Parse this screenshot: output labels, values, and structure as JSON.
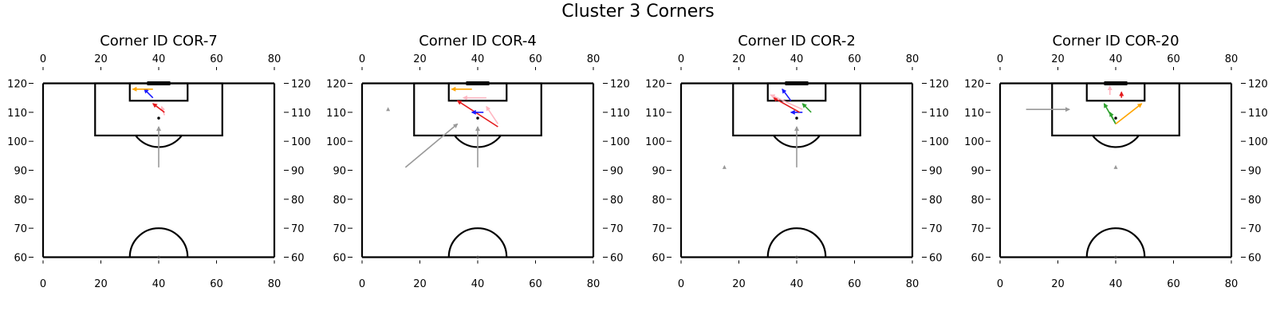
{
  "figure": {
    "title": "Cluster 3 Corners"
  },
  "colors": {
    "pitch_lines": "#000000",
    "background": "#ffffff"
  },
  "chart_data": [
    {
      "type": "pitch-arrows",
      "title": "Corner ID COR-7",
      "xlim": [
        0,
        80
      ],
      "ylim": [
        60,
        120
      ],
      "xticks": [
        0,
        20,
        40,
        60,
        80
      ],
      "yticks": [
        60,
        70,
        80,
        90,
        100,
        110,
        120
      ],
      "arrows": [
        {
          "color": "#999999",
          "x0": 40,
          "y0": 91,
          "x1": 40,
          "y1": 105
        },
        {
          "color": "#ffb6c1",
          "x0": 42,
          "y0": 109,
          "x1": 41,
          "y1": 112
        },
        {
          "color": "#e41a1c",
          "x0": 42,
          "y0": 110,
          "x1": 38,
          "y1": 113
        },
        {
          "color": "#1a1aff",
          "x0": 38,
          "y0": 115,
          "x1": 35,
          "y1": 118
        },
        {
          "color": "#ffa500",
          "x0": 38,
          "y0": 118,
          "x1": 31,
          "y1": 118
        }
      ],
      "points": [
        {
          "color": "#000000",
          "x": 40,
          "y": 108
        },
        {
          "color": "#444444",
          "x": 40,
          "y": 60
        }
      ]
    },
    {
      "type": "pitch-arrows",
      "title": "Corner ID COR-4",
      "xlim": [
        0,
        80
      ],
      "ylim": [
        60,
        120
      ],
      "xticks": [
        0,
        20,
        40,
        60,
        80
      ],
      "yticks": [
        60,
        70,
        80,
        90,
        100,
        110,
        120
      ],
      "arrows": [
        {
          "color": "#999999",
          "x0": 15,
          "y0": 91,
          "x1": 33,
          "y1": 106
        },
        {
          "color": "#999999",
          "x0": 40,
          "y0": 91,
          "x1": 40,
          "y1": 105
        },
        {
          "color": "#ffb6c1",
          "x0": 47,
          "y0": 106,
          "x1": 43,
          "y1": 112
        },
        {
          "color": "#e41a1c",
          "x0": 47,
          "y0": 105,
          "x1": 33,
          "y1": 114
        },
        {
          "color": "#1a1aff",
          "x0": 42,
          "y0": 110,
          "x1": 38,
          "y1": 110
        },
        {
          "color": "#ffb6c1",
          "x0": 43,
          "y0": 115,
          "x1": 35,
          "y1": 115
        },
        {
          "color": "#ffa500",
          "x0": 38,
          "y0": 118,
          "x1": 31,
          "y1": 118
        }
      ],
      "points": [
        {
          "color": "#999999",
          "x": 9,
          "y": 111
        },
        {
          "color": "#000000",
          "x": 40,
          "y": 108
        },
        {
          "color": "#444444",
          "x": 40,
          "y": 60
        }
      ]
    },
    {
      "type": "pitch-arrows",
      "title": "Corner ID COR-2",
      "xlim": [
        0,
        80
      ],
      "ylim": [
        60,
        120
      ],
      "xticks": [
        0,
        20,
        40,
        60,
        80
      ],
      "yticks": [
        60,
        70,
        80,
        90,
        100,
        110,
        120
      ],
      "arrows": [
        {
          "color": "#999999",
          "x0": 40,
          "y0": 91,
          "x1": 40,
          "y1": 105
        },
        {
          "color": "#1a1aff",
          "x0": 42,
          "y0": 110,
          "x1": 38,
          "y1": 110
        },
        {
          "color": "#e41a1c",
          "x0": 41,
          "y0": 110,
          "x1": 32,
          "y1": 115
        },
        {
          "color": "#ffb6c1",
          "x0": 42,
          "y0": 111,
          "x1": 31,
          "y1": 116
        },
        {
          "color": "#2ca02c",
          "x0": 45,
          "y0": 110,
          "x1": 42,
          "y1": 113
        },
        {
          "color": "#1a1aff",
          "x0": 38,
          "y0": 114,
          "x1": 35,
          "y1": 118
        }
      ],
      "points": [
        {
          "color": "#999999",
          "x": 15,
          "y": 91
        },
        {
          "color": "#000000",
          "x": 40,
          "y": 108
        },
        {
          "color": "#444444",
          "x": 40,
          "y": 60
        }
      ]
    },
    {
      "type": "pitch-arrows",
      "title": "Corner ID COR-20",
      "xlim": [
        0,
        80
      ],
      "ylim": [
        60,
        120
      ],
      "xticks": [
        0,
        20,
        40,
        60,
        80
      ],
      "yticks": [
        60,
        70,
        80,
        90,
        100,
        110,
        120
      ],
      "arrows": [
        {
          "color": "#999999",
          "x0": 9,
          "y0": 111,
          "x1": 24,
          "y1": 111
        },
        {
          "color": "#2ca02c",
          "x0": 40,
          "y0": 106,
          "x1": 36,
          "y1": 113
        },
        {
          "color": "#2ca02c",
          "x0": 40,
          "y0": 106,
          "x1": 38,
          "y1": 110
        },
        {
          "color": "#ffa500",
          "x0": 40,
          "y0": 106,
          "x1": 49,
          "y1": 113
        },
        {
          "color": "#e41a1c",
          "x0": 42,
          "y0": 115,
          "x1": 42,
          "y1": 117
        },
        {
          "color": "#ffb6c1",
          "x0": 38,
          "y0": 116,
          "x1": 38,
          "y1": 119
        }
      ],
      "points": [
        {
          "color": "#000000",
          "x": 40,
          "y": 108
        },
        {
          "color": "#999999",
          "x": 40,
          "y": 91
        },
        {
          "color": "#444444",
          "x": 40,
          "y": 60
        }
      ]
    }
  ]
}
